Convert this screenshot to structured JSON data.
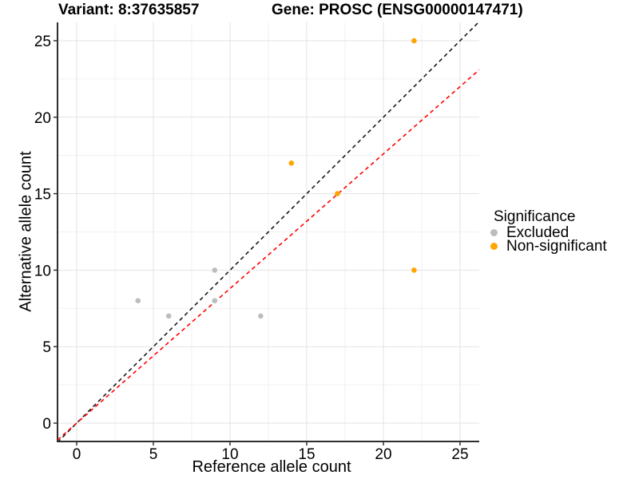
{
  "titles": {
    "variant": "Variant: 8:37635857",
    "gene": "Gene: PROSC (ENSG00000147471)"
  },
  "chart_data": {
    "type": "scatter",
    "xlabel": "Reference allele count",
    "ylabel": "Alternative allele count",
    "xlim": [
      -1.25,
      26.25
    ],
    "ylim": [
      -1.2,
      26.2
    ],
    "x_ticks": [
      0,
      5,
      10,
      15,
      20,
      25
    ],
    "y_ticks": [
      0,
      5,
      10,
      15,
      20,
      25
    ],
    "x_minor_ticks": [
      2.5,
      7.5,
      12.5,
      17.5,
      22.5
    ],
    "y_minor_ticks": [
      2.5,
      7.5,
      12.5,
      17.5,
      22.5
    ],
    "grid": "major-and-minor",
    "series": [
      {
        "name": "Excluded",
        "color": "#BDBDBD",
        "points": [
          [
            4,
            8
          ],
          [
            6,
            7
          ],
          [
            9,
            8
          ],
          [
            9,
            10
          ],
          [
            12,
            7
          ]
        ]
      },
      {
        "name": "Non-significant",
        "color": "#FFA500",
        "points": [
          [
            14,
            17
          ],
          [
            17,
            15
          ],
          [
            22,
            10
          ],
          [
            22,
            25
          ]
        ]
      }
    ],
    "lines": [
      {
        "name": "identity-line",
        "slope": 1,
        "intercept": 0,
        "style": "dashed",
        "color": "#1A1A1A"
      },
      {
        "name": "fitted-line",
        "slope": 0.88,
        "intercept": 0,
        "style": "dashed",
        "color": "#FF0000"
      }
    ],
    "legend": {
      "title": "Significance",
      "position": "right",
      "items": [
        {
          "label": "Excluded",
          "color": "#BDBDBD"
        },
        {
          "label": "Non-significant",
          "color": "#FFA500"
        }
      ]
    },
    "colors": {
      "grid_major": "#E3E3E3",
      "grid_minor": "#F0F0F0",
      "axis_line": "#2F2F2F",
      "tick_mark": "#333333",
      "tick_label": "#000000"
    }
  }
}
